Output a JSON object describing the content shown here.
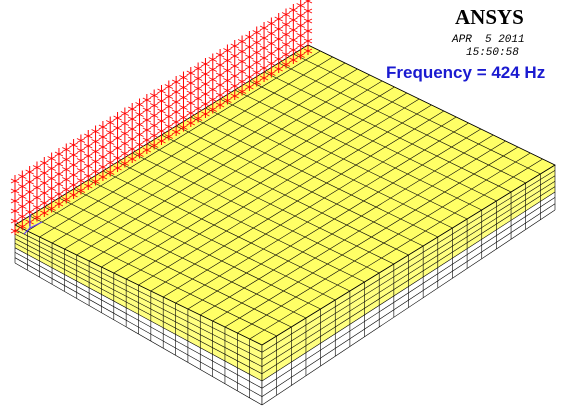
{
  "header": {
    "logo": "ANSYS",
    "date": "APR  5 2011",
    "time": "15:50:58"
  },
  "annotation": "Frequency = 424 Hz"
}
